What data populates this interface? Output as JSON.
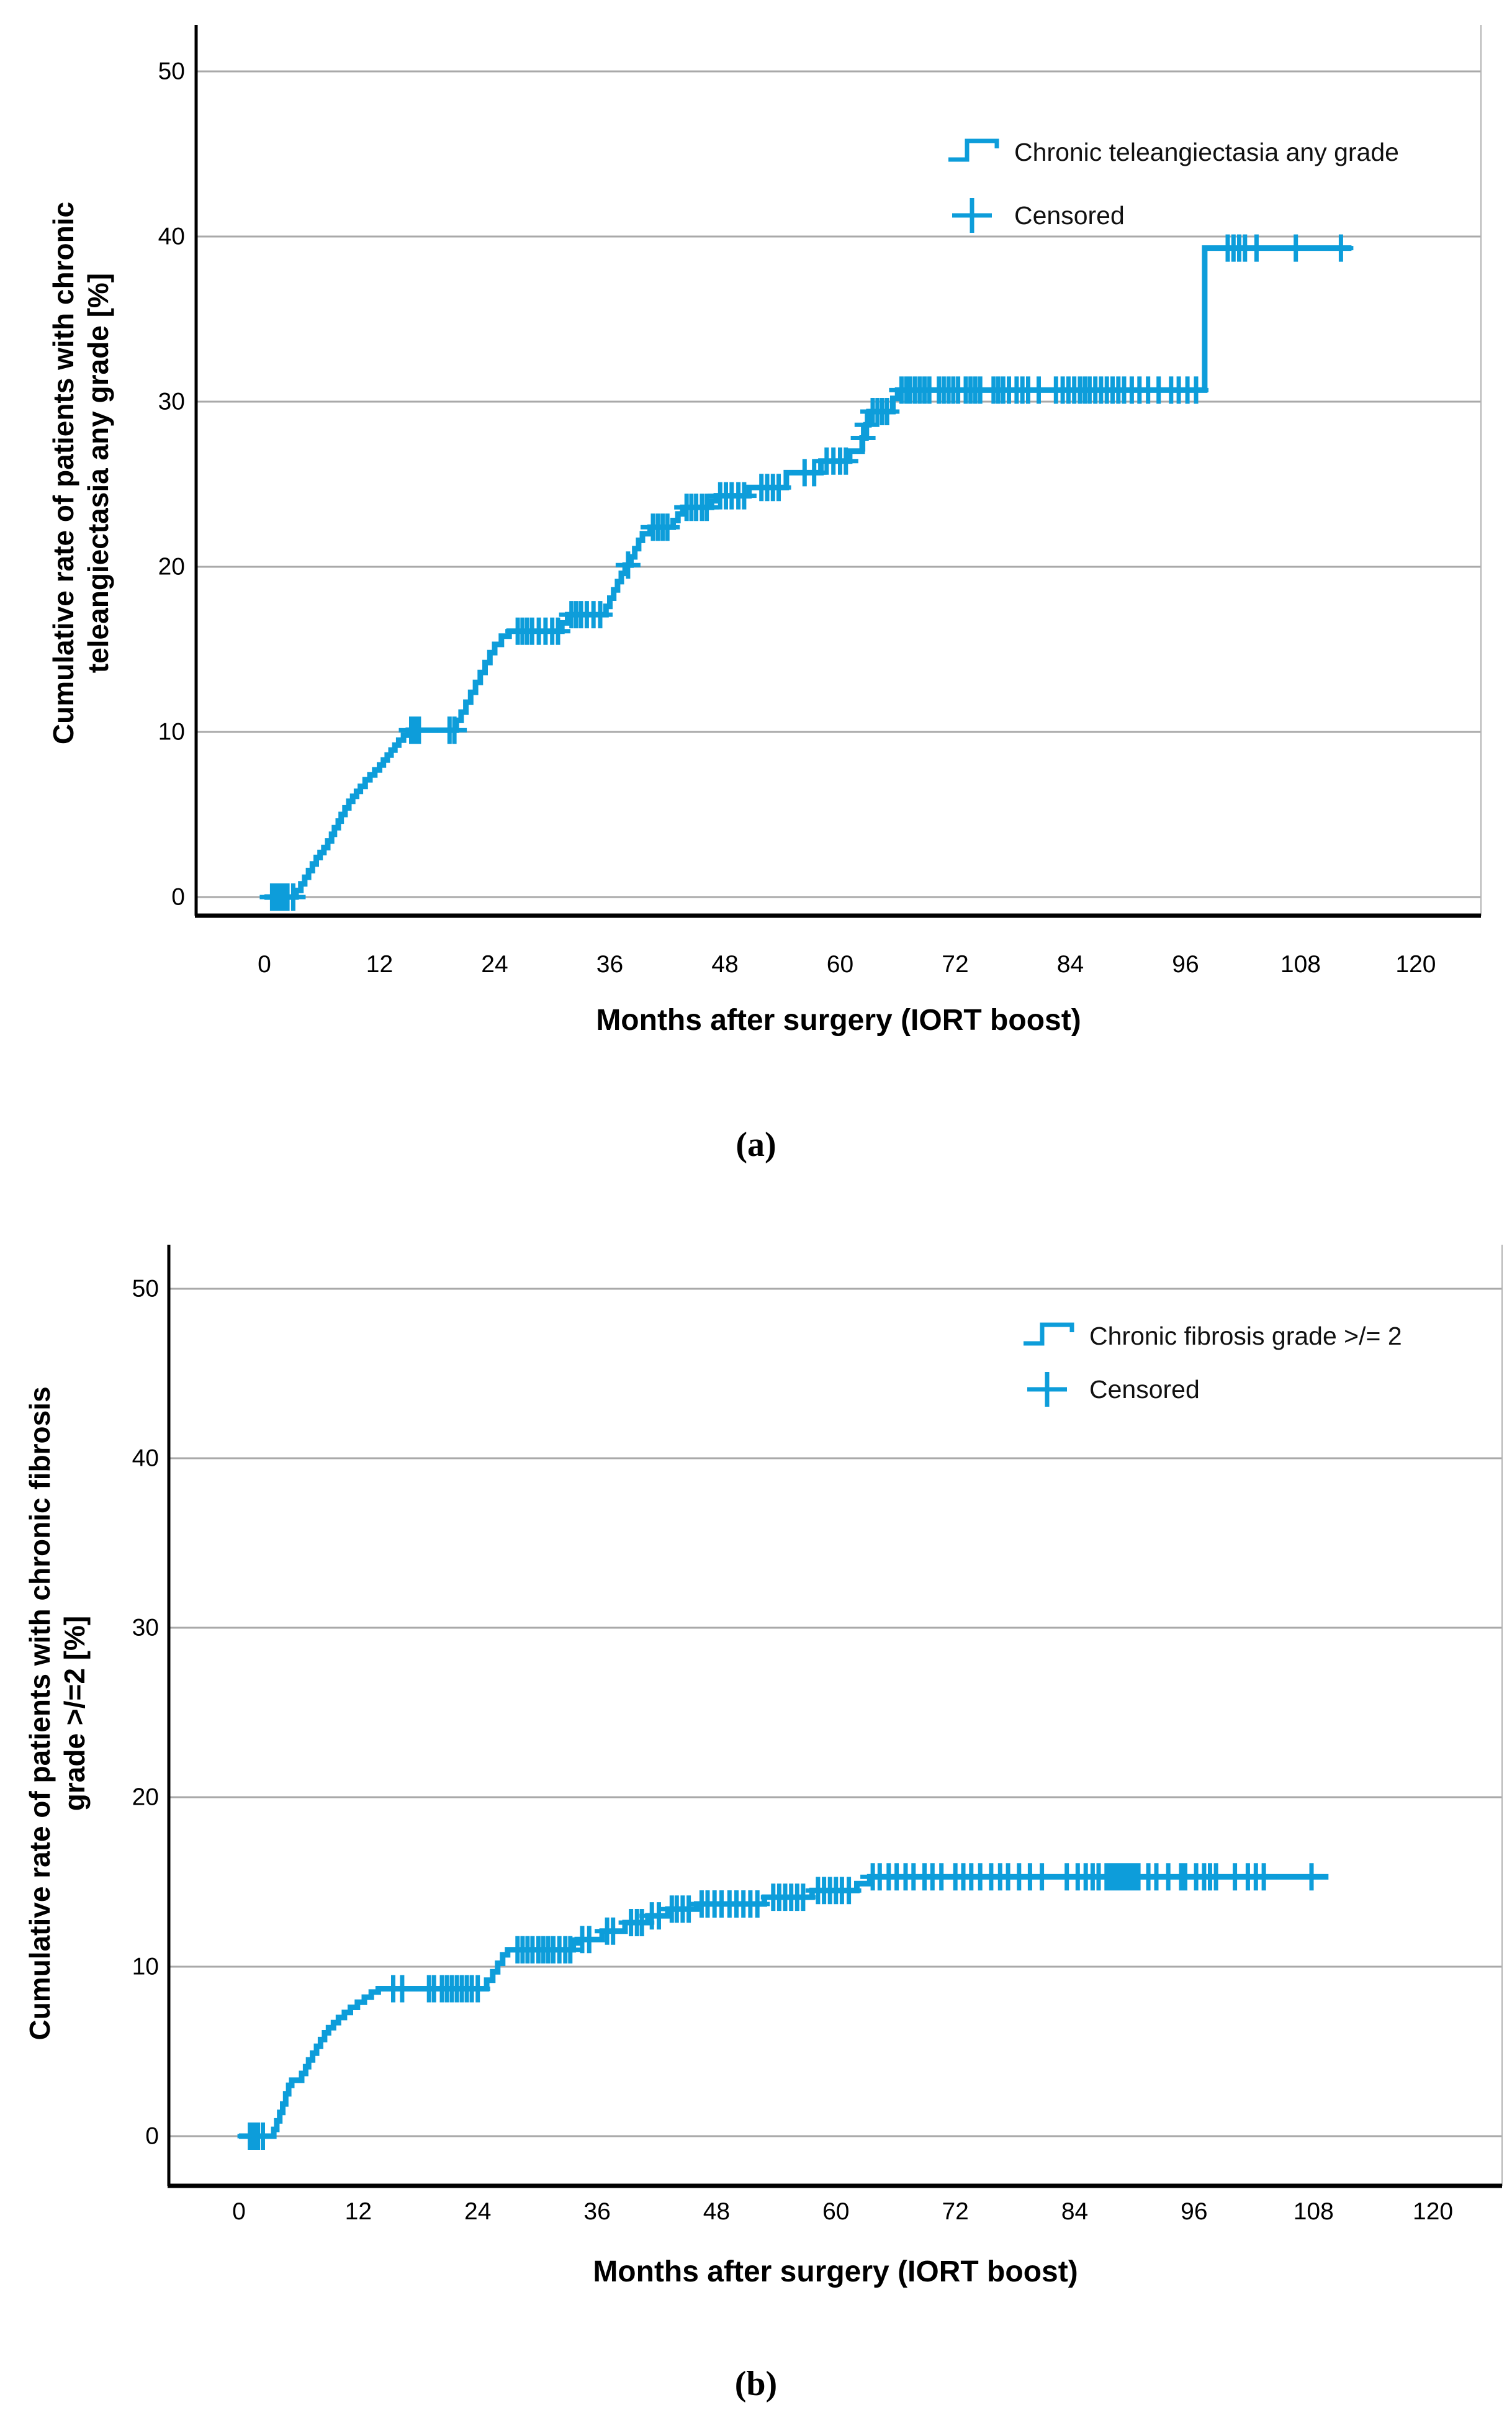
{
  "figure": {
    "panel_a_label": "(a)",
    "panel_b_label": "(b)"
  },
  "colors": {
    "curve": "#0d9dda",
    "grid": "#a9a9a9",
    "axis": "#000000",
    "frame": "#b4b4b4",
    "text": "#000000"
  },
  "chart_data": [
    {
      "id": "a",
      "type": "line",
      "subtype": "step-cumulative-incidence",
      "xlabel": "Months after surgery (IORT boost)",
      "ylabel": "Cumulative rate of patients with chronic\nteleangiectasia any grade [%]",
      "legend": [
        {
          "label": "Chronic teleangiectasia any grade",
          "marker": "step-line"
        },
        {
          "label": "Censored",
          "marker": "plus"
        }
      ],
      "x_ticks": [
        0,
        12,
        24,
        36,
        48,
        60,
        72,
        84,
        96,
        108,
        120
      ],
      "y_ticks": [
        0,
        10,
        20,
        30,
        40,
        50
      ],
      "xlim": [
        0,
        126
      ],
      "ylim": [
        0,
        52
      ],
      "grid": "horizontal",
      "legend_position": "top-right-inside",
      "end_month": 113.3,
      "steps": [
        [
          0,
          0
        ],
        [
          3,
          0
        ],
        [
          3.3,
          0.4
        ],
        [
          3.8,
          0.8
        ],
        [
          4.2,
          1.2
        ],
        [
          4.6,
          1.6
        ],
        [
          5,
          2
        ],
        [
          5.4,
          2.4
        ],
        [
          5.8,
          2.7
        ],
        [
          6.2,
          3
        ],
        [
          6.6,
          3.4
        ],
        [
          7,
          3.8
        ],
        [
          7.3,
          4.2
        ],
        [
          7.7,
          4.6
        ],
        [
          8,
          5
        ],
        [
          8.4,
          5.4
        ],
        [
          8.8,
          5.8
        ],
        [
          9.2,
          6.1
        ],
        [
          9.6,
          6.4
        ],
        [
          10,
          6.7
        ],
        [
          10.5,
          7.1
        ],
        [
          11,
          7.4
        ],
        [
          11.5,
          7.7
        ],
        [
          12,
          8
        ],
        [
          12.4,
          8.3
        ],
        [
          12.8,
          8.6
        ],
        [
          13.2,
          8.9
        ],
        [
          13.6,
          9.2
        ],
        [
          14,
          9.5
        ],
        [
          14.5,
          9.8
        ],
        [
          15,
          10.1
        ],
        [
          20,
          10.7
        ],
        [
          20.5,
          11.2
        ],
        [
          21,
          11.8
        ],
        [
          21.5,
          12.4
        ],
        [
          22,
          13
        ],
        [
          22.5,
          13.6
        ],
        [
          23,
          14.2
        ],
        [
          23.5,
          14.8
        ],
        [
          24,
          15.3
        ],
        [
          24.7,
          15.8
        ],
        [
          25.5,
          16.1
        ],
        [
          31,
          16.6
        ],
        [
          31.6,
          17.1
        ],
        [
          35.6,
          17.6
        ],
        [
          36,
          18.1
        ],
        [
          36.4,
          18.6
        ],
        [
          36.8,
          19.1
        ],
        [
          37.2,
          19.6
        ],
        [
          37.6,
          20.1
        ],
        [
          38.2,
          20.6
        ],
        [
          38.6,
          21.1
        ],
        [
          39,
          21.6
        ],
        [
          39.4,
          22
        ],
        [
          40.2,
          22.4
        ],
        [
          42.6,
          22.8
        ],
        [
          43.1,
          23.2
        ],
        [
          43.6,
          23.6
        ],
        [
          46.6,
          24
        ],
        [
          47.1,
          24.3
        ],
        [
          50.5,
          24.8
        ],
        [
          54.4,
          25.7
        ],
        [
          58,
          26.4
        ],
        [
          61,
          27
        ],
        [
          62.3,
          27.8
        ],
        [
          62.7,
          28.6
        ],
        [
          63,
          29.4
        ],
        [
          65.5,
          30.2
        ],
        [
          66,
          30.7
        ],
        [
          98,
          39.3
        ]
      ],
      "censored": [
        [
          0.8,
          0
        ],
        [
          1.2,
          0
        ],
        [
          1.6,
          0
        ],
        [
          2,
          0
        ],
        [
          2.4,
          0
        ],
        [
          3,
          0
        ],
        [
          15.3,
          10.1
        ],
        [
          15.7,
          10.1
        ],
        [
          16.1,
          10.1
        ],
        [
          19.3,
          10.1
        ],
        [
          19.8,
          10.1
        ],
        [
          26.4,
          16.1
        ],
        [
          26.9,
          16.1
        ],
        [
          27.4,
          16.1
        ],
        [
          27.9,
          16.1
        ],
        [
          28.6,
          16.1
        ],
        [
          29.3,
          16.1
        ],
        [
          30,
          16.1
        ],
        [
          30.6,
          16.1
        ],
        [
          32,
          17.1
        ],
        [
          32.5,
          17.1
        ],
        [
          33,
          17.1
        ],
        [
          33.6,
          17.1
        ],
        [
          34.3,
          17.1
        ],
        [
          35,
          17.1
        ],
        [
          37.9,
          20.1
        ],
        [
          40.5,
          22.4
        ],
        [
          41,
          22.4
        ],
        [
          41.5,
          22.4
        ],
        [
          42,
          22.4
        ],
        [
          44,
          23.6
        ],
        [
          44.5,
          23.6
        ],
        [
          45,
          23.6
        ],
        [
          45.6,
          23.6
        ],
        [
          46.1,
          23.6
        ],
        [
          47.5,
          24.3
        ],
        [
          48.1,
          24.3
        ],
        [
          48.7,
          24.3
        ],
        [
          49.4,
          24.3
        ],
        [
          50,
          24.3
        ],
        [
          51.8,
          24.8
        ],
        [
          52.4,
          24.8
        ],
        [
          53,
          24.8
        ],
        [
          53.6,
          24.8
        ],
        [
          56.3,
          25.7
        ],
        [
          57.3,
          25.7
        ],
        [
          58.6,
          26.4
        ],
        [
          59.3,
          26.4
        ],
        [
          60,
          26.4
        ],
        [
          60.6,
          26.4
        ],
        [
          62.4,
          27.8
        ],
        [
          62.8,
          28.6
        ],
        [
          63.4,
          29.4
        ],
        [
          63.9,
          29.4
        ],
        [
          64.4,
          29.4
        ],
        [
          64.9,
          29.4
        ],
        [
          66.4,
          30.7
        ],
        [
          66.9,
          30.7
        ],
        [
          67.3,
          30.7
        ],
        [
          67.8,
          30.7
        ],
        [
          68.3,
          30.7
        ],
        [
          68.8,
          30.7
        ],
        [
          69.3,
          30.7
        ],
        [
          70.3,
          30.7
        ],
        [
          70.8,
          30.7
        ],
        [
          71.3,
          30.7
        ],
        [
          71.8,
          30.7
        ],
        [
          72.3,
          30.7
        ],
        [
          73.1,
          30.7
        ],
        [
          73.6,
          30.7
        ],
        [
          74.1,
          30.7
        ],
        [
          74.6,
          30.7
        ],
        [
          76,
          30.7
        ],
        [
          76.5,
          30.7
        ],
        [
          77,
          30.7
        ],
        [
          77.6,
          30.7
        ],
        [
          78.4,
          30.7
        ],
        [
          79,
          30.7
        ],
        [
          79.6,
          30.7
        ],
        [
          80.7,
          30.7
        ],
        [
          82.5,
          30.7
        ],
        [
          83.2,
          30.7
        ],
        [
          83.8,
          30.7
        ],
        [
          84.4,
          30.7
        ],
        [
          85,
          30.7
        ],
        [
          85.5,
          30.7
        ],
        [
          86,
          30.7
        ],
        [
          86.6,
          30.7
        ],
        [
          87.2,
          30.7
        ],
        [
          87.8,
          30.7
        ],
        [
          88.4,
          30.7
        ],
        [
          89,
          30.7
        ],
        [
          89.6,
          30.7
        ],
        [
          90.4,
          30.7
        ],
        [
          91.2,
          30.7
        ],
        [
          92.1,
          30.7
        ],
        [
          93.2,
          30.7
        ],
        [
          94.5,
          30.7
        ],
        [
          95.3,
          30.7
        ],
        [
          96.2,
          30.7
        ],
        [
          97.1,
          30.7
        ],
        [
          100.4,
          39.3
        ],
        [
          101,
          39.3
        ],
        [
          101.6,
          39.3
        ],
        [
          102.2,
          39.3
        ],
        [
          103.4,
          39.3
        ],
        [
          107.5,
          39.3
        ],
        [
          112.2,
          39.3
        ]
      ]
    },
    {
      "id": "b",
      "type": "line",
      "subtype": "step-cumulative-incidence",
      "xlabel": "Months after surgery (IORT boost)",
      "ylabel": "Cumulative rate of patients with chronic fibrosis\ngrade >/=2 [%]",
      "legend": [
        {
          "label": "Chronic fibrosis grade >/= 2",
          "marker": "step-line"
        },
        {
          "label": "Censored",
          "marker": "plus"
        }
      ],
      "x_ticks": [
        0,
        12,
        24,
        36,
        48,
        60,
        72,
        84,
        96,
        108,
        120
      ],
      "y_ticks": [
        0,
        10,
        20,
        30,
        40,
        50
      ],
      "xlim": [
        0,
        127
      ],
      "ylim": [
        0,
        52
      ],
      "grid": "horizontal",
      "legend_position": "top-right-inside",
      "end_month": 109.5,
      "steps": [
        [
          0,
          0
        ],
        [
          3.2,
          0
        ],
        [
          3.5,
          0.4
        ],
        [
          3.8,
          0.9
        ],
        [
          4.1,
          1.4
        ],
        [
          4.4,
          1.9
        ],
        [
          4.7,
          2.5
        ],
        [
          5,
          3
        ],
        [
          5.3,
          3.3
        ],
        [
          6.3,
          3.7
        ],
        [
          6.7,
          4.1
        ],
        [
          7,
          4.5
        ],
        [
          7.4,
          4.9
        ],
        [
          7.8,
          5.3
        ],
        [
          8.2,
          5.7
        ],
        [
          8.6,
          6.1
        ],
        [
          9,
          6.4
        ],
        [
          9.5,
          6.7
        ],
        [
          10,
          7
        ],
        [
          10.6,
          7.3
        ],
        [
          11.2,
          7.6
        ],
        [
          11.9,
          7.9
        ],
        [
          12.6,
          8.2
        ],
        [
          13.3,
          8.5
        ],
        [
          14,
          8.7
        ],
        [
          24.9,
          9.2
        ],
        [
          25.5,
          9.7
        ],
        [
          26,
          10.2
        ],
        [
          26.5,
          10.7
        ],
        [
          27,
          11
        ],
        [
          33.6,
          11.4
        ],
        [
          34,
          11.6
        ],
        [
          36.5,
          12.1
        ],
        [
          38.8,
          12.6
        ],
        [
          41.1,
          13
        ],
        [
          43.1,
          13.4
        ],
        [
          46,
          13.7
        ],
        [
          52.8,
          14.1
        ],
        [
          57.6,
          14.5
        ],
        [
          62.1,
          14.9
        ],
        [
          63.4,
          15.3
        ]
      ],
      "censored": [
        [
          1.1,
          0
        ],
        [
          1.5,
          0
        ],
        [
          1.9,
          0
        ],
        [
          2.4,
          0
        ],
        [
          15.5,
          8.7
        ],
        [
          16.4,
          8.7
        ],
        [
          19.1,
          8.7
        ],
        [
          19.6,
          8.7
        ],
        [
          20.4,
          8.7
        ],
        [
          20.9,
          8.7
        ],
        [
          21.4,
          8.7
        ],
        [
          21.9,
          8.7
        ],
        [
          22.4,
          8.7
        ],
        [
          22.9,
          8.7
        ],
        [
          23.4,
          8.7
        ],
        [
          24,
          8.7
        ],
        [
          28,
          11
        ],
        [
          28.5,
          11
        ],
        [
          29,
          11
        ],
        [
          29.5,
          11
        ],
        [
          30.1,
          11
        ],
        [
          30.6,
          11
        ],
        [
          31.1,
          11
        ],
        [
          31.6,
          11
        ],
        [
          32.2,
          11
        ],
        [
          32.8,
          11
        ],
        [
          33.3,
          11
        ],
        [
          34.5,
          11.6
        ],
        [
          35.2,
          11.6
        ],
        [
          37,
          12.1
        ],
        [
          37.6,
          12.1
        ],
        [
          39.4,
          12.6
        ],
        [
          40,
          12.6
        ],
        [
          40.5,
          12.6
        ],
        [
          41.5,
          13
        ],
        [
          42.2,
          13
        ],
        [
          43.5,
          13.4
        ],
        [
          44,
          13.4
        ],
        [
          44.6,
          13.4
        ],
        [
          45.2,
          13.4
        ],
        [
          46.5,
          13.7
        ],
        [
          47.1,
          13.7
        ],
        [
          47.8,
          13.7
        ],
        [
          48.5,
          13.7
        ],
        [
          49.3,
          13.7
        ],
        [
          50,
          13.7
        ],
        [
          50.7,
          13.7
        ],
        [
          51.4,
          13.7
        ],
        [
          52.1,
          13.7
        ],
        [
          53.7,
          14.1
        ],
        [
          54.3,
          14.1
        ],
        [
          54.9,
          14.1
        ],
        [
          55.5,
          14.1
        ],
        [
          56.1,
          14.1
        ],
        [
          56.7,
          14.1
        ],
        [
          58.2,
          14.5
        ],
        [
          58.8,
          14.5
        ],
        [
          59.4,
          14.5
        ],
        [
          60,
          14.5
        ],
        [
          60.6,
          14.5
        ],
        [
          61.3,
          14.5
        ],
        [
          63.7,
          15.3
        ],
        [
          64.4,
          15.3
        ],
        [
          65.3,
          15.3
        ],
        [
          66.1,
          15.3
        ],
        [
          67,
          15.3
        ],
        [
          67.8,
          15.3
        ],
        [
          68.9,
          15.3
        ],
        [
          69.7,
          15.3
        ],
        [
          70.6,
          15.3
        ],
        [
          72,
          15.3
        ],
        [
          72.8,
          15.3
        ],
        [
          73.6,
          15.3
        ],
        [
          74.5,
          15.3
        ],
        [
          75.6,
          15.3
        ],
        [
          76.5,
          15.3
        ],
        [
          77.3,
          15.3
        ],
        [
          78.4,
          15.3
        ],
        [
          79.5,
          15.3
        ],
        [
          80.7,
          15.3
        ],
        [
          83.2,
          15.3
        ],
        [
          84.3,
          15.3
        ],
        [
          85.1,
          15.3
        ],
        [
          85.8,
          15.3
        ],
        [
          86.4,
          15.3
        ],
        [
          87.2,
          15.3
        ],
        [
          87.6,
          15.3
        ],
        [
          88,
          15.3
        ],
        [
          88.4,
          15.3
        ],
        [
          88.8,
          15.3
        ],
        [
          89.2,
          15.3
        ],
        [
          89.6,
          15.3
        ],
        [
          90,
          15.3
        ],
        [
          90.4,
          15.3
        ],
        [
          91.4,
          15.3
        ],
        [
          92.2,
          15.3
        ],
        [
          93.4,
          15.3
        ],
        [
          94.7,
          15.3
        ],
        [
          95.1,
          15.3
        ],
        [
          96.2,
          15.3
        ],
        [
          97,
          15.3
        ],
        [
          97.6,
          15.3
        ],
        [
          98.2,
          15.3
        ],
        [
          100.1,
          15.3
        ],
        [
          101.4,
          15.3
        ],
        [
          102.2,
          15.3
        ],
        [
          103,
          15.3
        ],
        [
          107.8,
          15.3
        ]
      ]
    }
  ]
}
